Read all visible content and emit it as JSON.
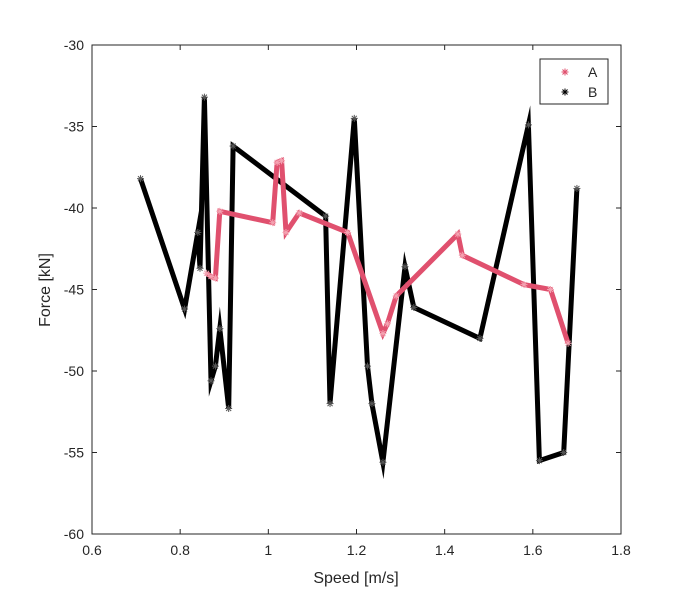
{
  "chart_data": {
    "type": "line",
    "xlabel": "Speed [m/s]",
    "ylabel": "Force [kN]",
    "xlim": [
      0.6,
      1.8
    ],
    "ylim": [
      -60,
      -30
    ],
    "xticks": [
      0.6,
      0.8,
      1.0,
      1.2,
      1.4,
      1.6,
      1.8
    ],
    "xtick_labels": [
      "0.6",
      "0.8",
      "1",
      "1.2",
      "1.4",
      "1.6",
      "1.8"
    ],
    "yticks": [
      -60,
      -55,
      -50,
      -45,
      -40,
      -35,
      -30
    ],
    "ytick_labels": [
      "-60",
      "-55",
      "-50",
      "-45",
      "-40",
      "-35",
      "-30"
    ],
    "grid": false,
    "legend_position": "top-right",
    "series": [
      {
        "name": "A",
        "color": "#e0506e",
        "marker": "asterisk",
        "x": [
          0.86,
          0.87,
          0.88,
          0.89,
          1.01,
          1.02,
          1.03,
          1.04,
          1.07,
          1.18,
          1.26,
          1.27,
          1.29,
          1.43,
          1.44,
          1.58,
          1.64,
          1.68
        ],
        "y": [
          -44.0,
          -44.2,
          -44.3,
          -40.2,
          -40.9,
          -37.2,
          -37.1,
          -41.5,
          -40.3,
          -41.5,
          -47.7,
          -47.1,
          -45.4,
          -41.6,
          -42.9,
          -44.7,
          -45.0,
          -48.3
        ]
      },
      {
        "name": "B",
        "color": "#000000",
        "marker": "asterisk",
        "x": [
          0.71,
          0.81,
          0.84,
          0.845,
          0.855,
          0.87,
          0.88,
          0.89,
          0.91,
          0.92,
          1.13,
          1.14,
          1.195,
          1.225,
          1.235,
          1.26,
          1.31,
          1.33,
          1.48,
          1.59,
          1.615,
          1.67,
          1.7
        ],
        "y": [
          -38.2,
          -46.2,
          -41.5,
          -43.7,
          -33.2,
          -50.6,
          -49.7,
          -47.4,
          -52.3,
          -36.2,
          -40.5,
          -52.0,
          -34.5,
          -49.7,
          -52.0,
          -55.6,
          -43.6,
          -46.1,
          -48.0,
          -34.9,
          -55.5,
          -55.0,
          -38.8
        ]
      }
    ]
  }
}
